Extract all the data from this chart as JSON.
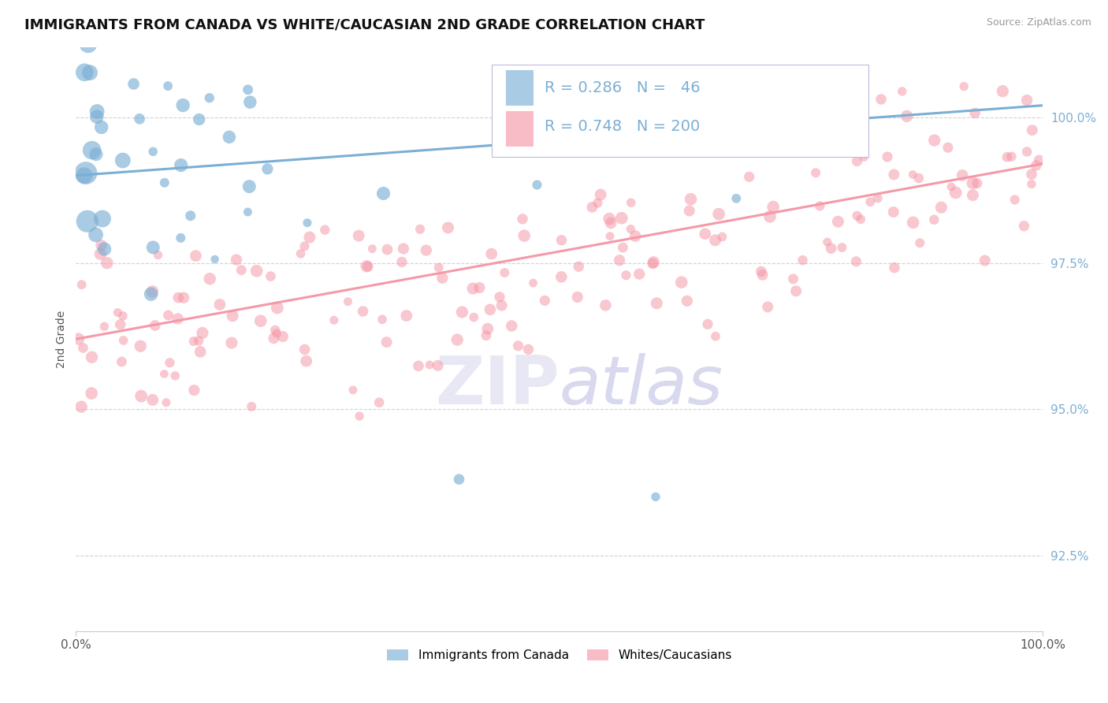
{
  "title": "IMMIGRANTS FROM CANADA VS WHITE/CAUCASIAN 2ND GRADE CORRELATION CHART",
  "source": "Source: ZipAtlas.com",
  "ylabel": "2nd Grade",
  "yaxis_ticks": [
    92.5,
    95.0,
    97.5,
    100.0
  ],
  "yaxis_labels": [
    "92.5%",
    "95.0%",
    "97.5%",
    "100.0%"
  ],
  "xmin": 0.0,
  "xmax": 100.0,
  "ymin": 91.2,
  "ymax": 101.2,
  "blue_color": "#7BAFD4",
  "pink_color": "#F599A8",
  "blue_R": 0.286,
  "blue_N": 46,
  "pink_R": 0.748,
  "pink_N": 200,
  "watermark_zip": "ZIP",
  "watermark_atlas": "atlas",
  "legend_label_blue": "Immigrants from Canada",
  "legend_label_pink": "Whites/Caucasians",
  "title_fontsize": 13,
  "axis_label_fontsize": 10,
  "blue_line_start_y": 99.0,
  "blue_line_end_y": 100.2,
  "pink_line_start_y": 96.2,
  "pink_line_end_y": 99.2
}
